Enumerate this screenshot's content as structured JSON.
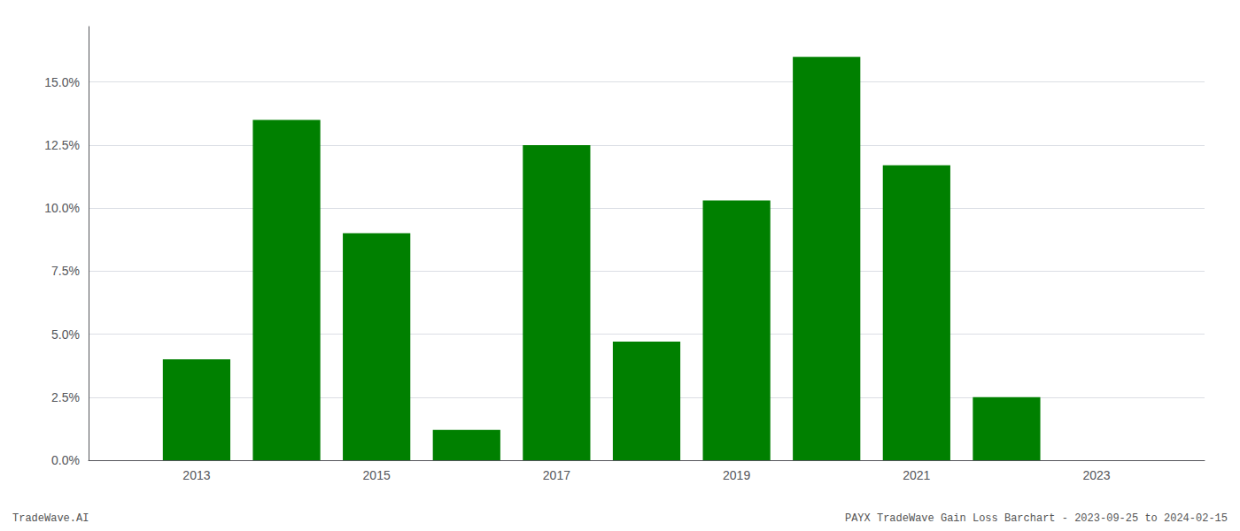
{
  "chart_data": {
    "type": "bar",
    "x": [
      2013,
      2014,
      2015,
      2016,
      2017,
      2018,
      2019,
      2020,
      2021,
      2022,
      2023
    ],
    "values": [
      0.04,
      0.135,
      0.09,
      0.012,
      0.125,
      0.047,
      0.103,
      0.16,
      0.117,
      0.025,
      0.0
    ],
    "color": "#008000",
    "xlim": [
      2011.8,
      2024.2
    ],
    "xticks": [
      2013,
      2015,
      2017,
      2019,
      2021,
      2023
    ],
    "ylim": [
      0,
      0.172
    ],
    "yticks": [
      {
        "value": 0.0,
        "label": "0.0%"
      },
      {
        "value": 0.025,
        "label": "2.5%"
      },
      {
        "value": 0.05,
        "label": "5.0%"
      },
      {
        "value": 0.075,
        "label": "7.5%"
      },
      {
        "value": 0.1,
        "label": "10.0%"
      },
      {
        "value": 0.125,
        "label": "12.5%"
      },
      {
        "value": 0.15,
        "label": "15.0%"
      }
    ],
    "grid": true,
    "annotations": [
      "TradeWave.AI",
      "PAYX TradeWave Gain Loss Barchart - 2023-09-25 to 2024-02-15"
    ]
  }
}
